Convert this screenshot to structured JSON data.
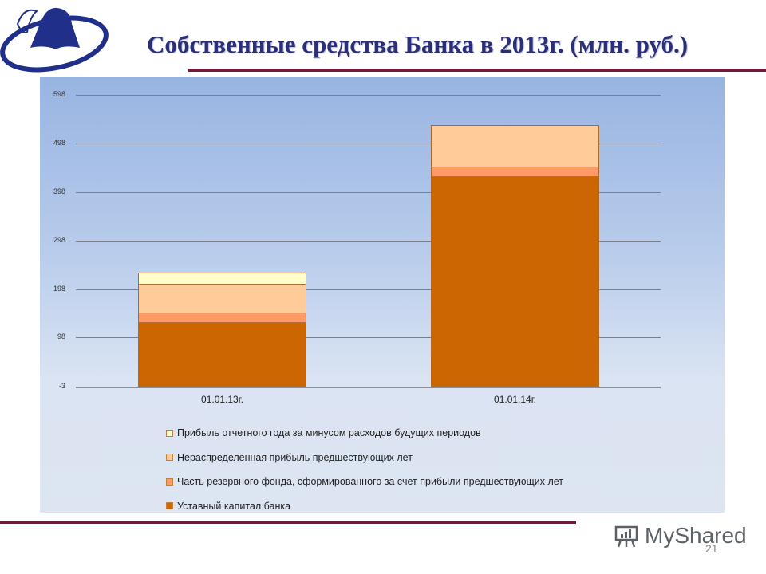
{
  "slide": {
    "title": "Собственные средства Банка в 2013г. (млн. руб.)",
    "page_number": "21",
    "watermark": "MyShared",
    "accent_color": "#6e1a3a",
    "title_color": "#2b2f7a"
  },
  "chart_data": {
    "type": "bar",
    "stacked": true,
    "title": "Собственные средства Банка в 2013г. (млн. руб.)",
    "xlabel": "",
    "ylabel": "",
    "categories": [
      "01.01.13г.",
      "01.01.14г."
    ],
    "yticks": [
      "598",
      "498",
      "398",
      "298",
      "198",
      "98",
      "-3"
    ],
    "ylim": [
      -3,
      598
    ],
    "grid": true,
    "legend_position": "bottom",
    "series": [
      {
        "name": "Уставный капитал банка",
        "color": "#cc6600",
        "values": [
          132,
          432
        ]
      },
      {
        "name": "Часть резервного фонда, сформированного за счет прибыли предшествующих лет",
        "color": "#ff9966",
        "values": [
          19,
          20
        ]
      },
      {
        "name": "Нераспределенная прибыль предшествующих лет",
        "color": "#ffcc99",
        "values": [
          59,
          84
        ]
      },
      {
        "name": "Прибыль отчетного года за минусом расходов будущих периодов",
        "color": "#ffffcc",
        "values": [
          22,
          0
        ]
      }
    ]
  },
  "legend": [
    {
      "label": "Прибыль отчетного года за минусом расходов будущих периодов",
      "color": "#ffffcc"
    },
    {
      "label": "Нераспределенная прибыль предшествующих лет",
      "color": "#ffcc99"
    },
    {
      "label": "Часть резервного фонда, сформированного за счет прибыли предшествующих лет",
      "color": "#ff9966"
    },
    {
      "label": "Уставный капитал банка",
      "color": "#cc6600"
    }
  ]
}
